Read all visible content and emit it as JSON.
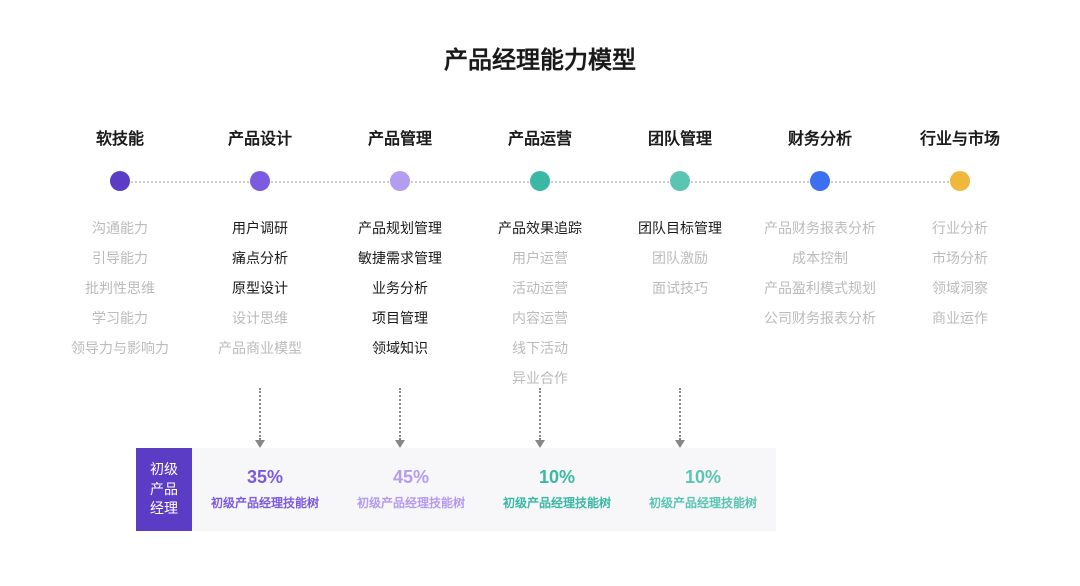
{
  "title": "产品经理能力模型",
  "background_color": "#ffffff",
  "title_color": "#1a1a1a",
  "title_fontsize": 24,
  "column_title_fontsize": 16,
  "item_fontsize": 14,
  "item_active_color": "#1a1a1a",
  "item_inactive_color": "#bbbbbb",
  "dotted_line_color": "#cccccc",
  "node_diameter": 20,
  "columns": [
    {
      "title": "软技能",
      "node_color": "#5b3cc4",
      "items": [
        {
          "label": "沟通能力",
          "active": false
        },
        {
          "label": "引导能力",
          "active": false
        },
        {
          "label": "批判性思维",
          "active": false
        },
        {
          "label": "学习能力",
          "active": false
        },
        {
          "label": "领导力与影响力",
          "active": false
        }
      ],
      "footer": null
    },
    {
      "title": "产品设计",
      "node_color": "#7b5ce0",
      "items": [
        {
          "label": "用户调研",
          "active": true
        },
        {
          "label": "痛点分析",
          "active": true
        },
        {
          "label": "原型设计",
          "active": true
        },
        {
          "label": "设计思维",
          "active": false
        },
        {
          "label": "产品商业模型",
          "active": false
        }
      ],
      "footer": {
        "pct": "35%",
        "sub": "初级产品经理技能树",
        "color": "#7b5ce0"
      }
    },
    {
      "title": "产品管理",
      "node_color": "#b49cf0",
      "items": [
        {
          "label": "产品规划管理",
          "active": true
        },
        {
          "label": "敏捷需求管理",
          "active": true
        },
        {
          "label": "业务分析",
          "active": true
        },
        {
          "label": "项目管理",
          "active": true
        },
        {
          "label": "领域知识",
          "active": true
        }
      ],
      "footer": {
        "pct": "45%",
        "sub": "初级产品经理技能树",
        "color": "#b49cf0"
      }
    },
    {
      "title": "产品运营",
      "node_color": "#3bb8a5",
      "items": [
        {
          "label": "产品效果追踪",
          "active": true
        },
        {
          "label": "用户运营",
          "active": false
        },
        {
          "label": "活动运营",
          "active": false
        },
        {
          "label": "内容运营",
          "active": false
        },
        {
          "label": "线下活动",
          "active": false
        },
        {
          "label": "异业合作",
          "active": false
        }
      ],
      "footer": {
        "pct": "10%",
        "sub": "初级产品经理技能树",
        "color": "#3bb8a5"
      }
    },
    {
      "title": "团队管理",
      "node_color": "#5cc4b3",
      "items": [
        {
          "label": "团队目标管理",
          "active": true
        },
        {
          "label": "团队激励",
          "active": false
        },
        {
          "label": "面试技巧",
          "active": false
        }
      ],
      "footer": {
        "pct": "10%",
        "sub": "初级产品经理技能树",
        "color": "#5cc4b3"
      }
    },
    {
      "title": "财务分析",
      "node_color": "#3b6ef0",
      "items": [
        {
          "label": "产品财务报表分析",
          "active": false
        },
        {
          "label": "成本控制",
          "active": false
        },
        {
          "label": "产品盈利模式规划",
          "active": false
        },
        {
          "label": "公司财务报表分析",
          "active": false
        }
      ],
      "footer": null
    },
    {
      "title": "行业与市场",
      "node_color": "#f0b83b",
      "items": [
        {
          "label": "行业分析",
          "active": false
        },
        {
          "label": "市场分析",
          "active": false
        },
        {
          "label": "领域洞察",
          "active": false
        },
        {
          "label": "商业运作",
          "active": false
        }
      ],
      "footer": null
    }
  ],
  "footer_label": "初级产品经理",
  "footer_label_bg": "#5b3cc4",
  "footer_label_color": "#ffffff",
  "footer_bg": "#f7f7f9",
  "arrow_color": "#888888"
}
